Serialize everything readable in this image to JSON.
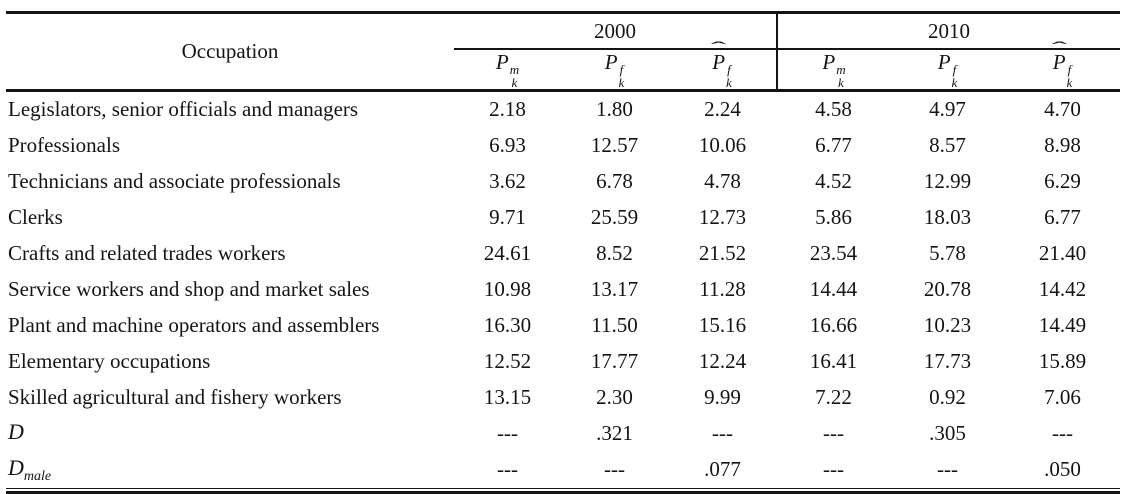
{
  "chart_data": {
    "type": "table",
    "colors": {
      "text": "#141414",
      "rule": "#141414",
      "background": "#ffffff"
    },
    "header": {
      "occupation_label": "Occupation",
      "year_groups": [
        {
          "label": "2000"
        },
        {
          "label": "2010"
        }
      ],
      "measure_columns": [
        {
          "base": "P",
          "sup": "m",
          "sub": "k",
          "hat": ""
        },
        {
          "base": "P",
          "sup": "f",
          "sub": "k",
          "hat": ""
        },
        {
          "base": "P",
          "sup": "f",
          "sub": "k",
          "hat": "ˆ"
        },
        {
          "base": "P",
          "sup": "m",
          "sub": "k",
          "hat": ""
        },
        {
          "base": "P",
          "sup": "f",
          "sub": "k",
          "hat": ""
        },
        {
          "base": "P",
          "sup": "f",
          "sub": "k",
          "hat": "ˆ"
        }
      ]
    },
    "rows": [
      {
        "label": "Legislators, senior officials and managers",
        "values": [
          "2.18",
          "1.80",
          "2.24",
          "4.58",
          "4.97",
          "4.70"
        ]
      },
      {
        "label": "Professionals",
        "values": [
          "6.93",
          "12.57",
          "10.06",
          "6.77",
          "8.57",
          "8.98"
        ]
      },
      {
        "label": "Technicians and associate professionals",
        "values": [
          "3.62",
          "6.78",
          "4.78",
          "4.52",
          "12.99",
          "6.29"
        ]
      },
      {
        "label": "Clerks",
        "values": [
          "9.71",
          "25.59",
          "12.73",
          "5.86",
          "18.03",
          "6.77"
        ]
      },
      {
        "label": "Crafts and related trades workers",
        "values": [
          "24.61",
          "8.52",
          "21.52",
          "23.54",
          "5.78",
          "21.40"
        ]
      },
      {
        "label": "Service workers and shop and market sales",
        "values": [
          "10.98",
          "13.17",
          "11.28",
          "14.44",
          "20.78",
          "14.42"
        ]
      },
      {
        "label": "Plant and machine operators and assemblers",
        "values": [
          "16.30",
          "11.50",
          "15.16",
          "16.66",
          "10.23",
          "14.49"
        ]
      },
      {
        "label": "Elementary occupations",
        "values": [
          "12.52",
          "17.77",
          "12.24",
          "16.41",
          "17.73",
          "15.89"
        ]
      },
      {
        "label": "Skilled agricultural and fishery workers",
        "values": [
          "13.15",
          "2.30",
          "9.99",
          "7.22",
          "0.92",
          "7.06"
        ]
      },
      {
        "label": "D",
        "label_sub": "",
        "values": [
          "---",
          ".321",
          "---",
          "---",
          ".305",
          "---"
        ]
      },
      {
        "label": "D",
        "label_sub": "male",
        "values": [
          "---",
          "---",
          ".077",
          "---",
          "---",
          ".050"
        ]
      }
    ]
  }
}
